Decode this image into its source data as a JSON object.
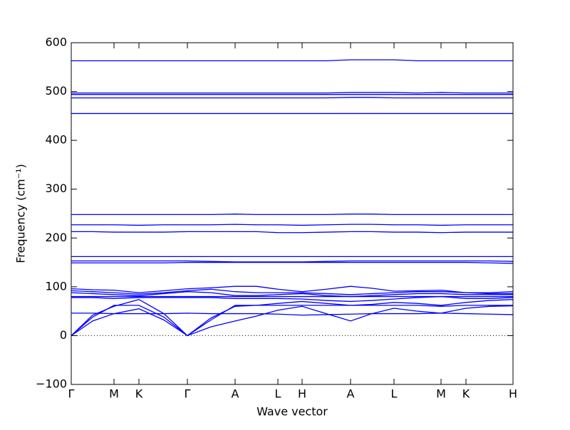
{
  "chart_data": {
    "type": "line",
    "xlabel": "Wave vector",
    "ylabel": "Frequency (cm⁻¹)",
    "color": "#0000ff",
    "zero_line": true,
    "xlim": [
      0,
      620
    ],
    "xticks": [
      {
        "value": 0,
        "label": "Γ"
      },
      {
        "value": 60,
        "label": "M"
      },
      {
        "value": 95,
        "label": "K"
      },
      {
        "value": 163,
        "label": "Γ"
      },
      {
        "value": 230,
        "label": "A"
      },
      {
        "value": 290,
        "label": "L"
      },
      {
        "value": 324,
        "label": "H"
      },
      {
        "value": 392,
        "label": "A"
      },
      {
        "value": 453,
        "label": "L"
      },
      {
        "value": 519,
        "label": "M"
      },
      {
        "value": 554,
        "label": "K"
      },
      {
        "value": 620,
        "label": "H"
      }
    ],
    "ylim": [
      -100,
      600
    ],
    "yticks": [
      {
        "value": -100,
        "label": "−100"
      },
      0,
      100,
      200,
      300,
      400,
      500,
      600
    ],
    "x": [
      0,
      30,
      60,
      95,
      130,
      163,
      196,
      230,
      260,
      290,
      324,
      358,
      392,
      422,
      453,
      486,
      519,
      554,
      587,
      620
    ],
    "series": [
      {
        "values": [
          563,
          563,
          563,
          563,
          563,
          563,
          563,
          563,
          563,
          563,
          563,
          563,
          565,
          565,
          565,
          563,
          563,
          563,
          563,
          563
        ]
      },
      {
        "values": [
          497,
          497,
          497,
          497,
          497,
          497,
          497,
          497,
          497,
          497,
          497,
          497,
          498,
          498,
          498,
          497,
          498,
          497,
          497,
          497
        ]
      },
      {
        "values": [
          494,
          494,
          494,
          494,
          494,
          494,
          494,
          494,
          494,
          494,
          494,
          494,
          494,
          494,
          494,
          494,
          494,
          494,
          494,
          494
        ]
      },
      {
        "values": [
          487,
          487,
          487,
          487,
          487,
          487,
          487,
          487,
          487,
          487,
          487,
          487,
          488,
          488,
          487,
          487,
          487,
          487,
          487,
          487
        ]
      },
      {
        "values": [
          455,
          455,
          455,
          455,
          455,
          455,
          455,
          455,
          455,
          455,
          455,
          455,
          455,
          455,
          455,
          455,
          455,
          455,
          455,
          455
        ]
      },
      {
        "values": [
          248,
          248,
          248,
          248,
          248,
          248,
          248,
          249,
          248,
          248,
          248,
          248,
          249,
          249,
          248,
          248,
          248,
          248,
          248,
          248
        ]
      },
      {
        "values": [
          227,
          227,
          227,
          226,
          227,
          227,
          227,
          228,
          227,
          227,
          226,
          227,
          228,
          228,
          227,
          227,
          226,
          227,
          227,
          227
        ]
      },
      {
        "values": [
          213,
          213,
          212,
          212,
          212,
          213,
          213,
          213,
          213,
          211,
          211,
          212,
          213,
          213,
          212,
          212,
          211,
          212,
          212,
          212
        ]
      },
      {
        "values": [
          162,
          162,
          162,
          162,
          162,
          162,
          162,
          162,
          162,
          162,
          162,
          162,
          162,
          162,
          162,
          162,
          162,
          162,
          162,
          162
        ]
      },
      {
        "values": [
          153,
          153,
          153,
          153,
          153,
          153,
          152,
          151,
          151,
          151,
          151,
          152,
          153,
          153,
          153,
          153,
          153,
          153,
          153,
          152
        ]
      },
      {
        "values": [
          149,
          149,
          149,
          149,
          149,
          150,
          150,
          150,
          150,
          150,
          150,
          150,
          150,
          150,
          150,
          150,
          150,
          150,
          149,
          148
        ]
      },
      {
        "values": [
          96,
          94,
          93,
          88,
          92,
          96,
          98,
          101,
          101,
          95,
          90,
          95,
          101,
          97,
          91,
          92,
          93,
          88,
          88,
          90
        ]
      },
      {
        "values": [
          92,
          90,
          88,
          85,
          88,
          92,
          95,
          90,
          88,
          88,
          88,
          86,
          84,
          86,
          88,
          90,
          90,
          88,
          86,
          86
        ]
      },
      {
        "values": [
          88,
          86,
          84,
          82,
          86,
          90,
          88,
          82,
          82,
          84,
          86,
          82,
          80,
          82,
          84,
          86,
          86,
          84,
          84,
          84
        ]
      },
      {
        "values": [
          80,
          80,
          80,
          80,
          80,
          80,
          80,
          80,
          80,
          80,
          80,
          80,
          80,
          80,
          80,
          80,
          80,
          80,
          80,
          80
        ]
      },
      {
        "values": [
          78,
          78,
          76,
          78,
          78,
          78,
          78,
          76,
          76,
          76,
          75,
          72,
          70,
          72,
          75,
          78,
          80,
          76,
          76,
          78
        ]
      },
      {
        "values": [
          0,
          38,
          62,
          62,
          38,
          0,
          32,
          62,
          62,
          62,
          62,
          62,
          62,
          62,
          62,
          62,
          60,
          62,
          62,
          62
        ]
      },
      {
        "values": [
          0,
          30,
          45,
          55,
          32,
          0,
          18,
          30,
          40,
          52,
          60,
          45,
          30,
          45,
          56,
          50,
          46,
          56,
          60,
          61
        ]
      },
      {
        "values": [
          0,
          42,
          60,
          74,
          45,
          0,
          36,
          60,
          62,
          66,
          70,
          66,
          62,
          64,
          68,
          66,
          62,
          68,
          72,
          74
        ]
      },
      {
        "values": [
          46,
          46,
          45,
          45,
          45,
          46,
          45,
          45,
          45,
          44,
          42,
          43,
          44,
          45,
          45,
          45,
          46,
          45,
          44,
          43
        ]
      }
    ]
  }
}
